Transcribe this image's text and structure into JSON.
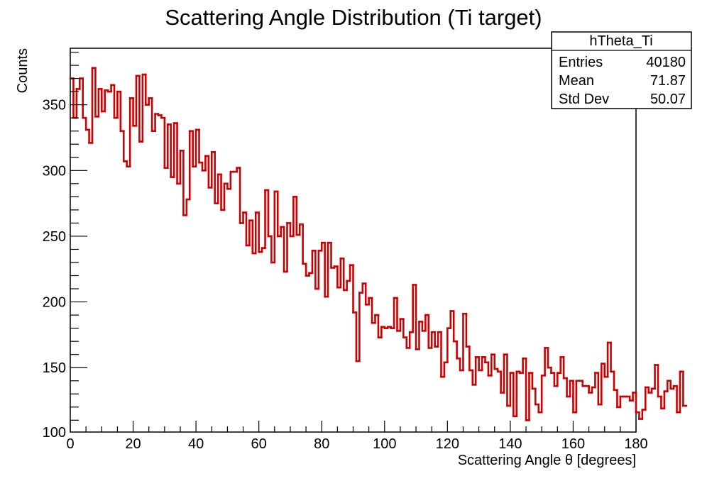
{
  "colors": {
    "histogram": "#cc0000",
    "axes": "#000000",
    "background": "#ffffff"
  },
  "stats_box": {
    "name": "hTheta_Ti",
    "rows": [
      {
        "label": "Entries",
        "value": "40180"
      },
      {
        "label": "Mean",
        "value": "71.87"
      },
      {
        "label": "Std Dev",
        "value": "50.07"
      }
    ]
  },
  "chart_data": {
    "type": "histogram",
    "title": "Scattering Angle Distribution (Ti target)",
    "xlabel": "Scattering Angle θ [degrees]",
    "ylabel": "Counts",
    "xlim": [
      0,
      180
    ],
    "ylim": [
      101,
      393
    ],
    "x_ticks": [
      0,
      20,
      40,
      60,
      80,
      100,
      120,
      140,
      160,
      180
    ],
    "y_ticks": [
      100,
      150,
      200,
      250,
      300,
      350
    ],
    "bin_width": 1,
    "values": [
      370,
      340,
      362,
      370,
      340,
      331,
      321,
      378,
      341,
      362,
      345,
      361,
      360,
      365,
      340,
      360,
      330,
      307,
      303,
      355,
      334,
      372,
      322,
      373,
      350,
      355,
      330,
      343,
      342,
      340,
      302,
      335,
      295,
      336,
      290,
      315,
      266,
      278,
      330,
      303,
      331,
      306,
      300,
      311,
      287,
      314,
      275,
      297,
      270,
      290,
      286,
      299,
      299,
      302,
      260,
      268,
      243,
      262,
      237,
      268,
      238,
      241,
      285,
      250,
      230,
      284,
      250,
      257,
      223,
      260,
      250,
      280,
      251,
      259,
      229,
      220,
      222,
      239,
      210,
      239,
      245,
      204,
      245,
      226,
      227,
      211,
      233,
      209,
      216,
      228,
      192,
      155,
      207,
      214,
      198,
      203,
      184,
      190,
      173,
      181,
      180,
      181,
      180,
      203,
      178,
      187,
      173,
      165,
      177,
      213,
      164,
      185,
      178,
      190,
      165,
      177,
      166,
      177,
      143,
      154,
      180,
      193,
      170,
      157,
      148,
      191,
      166,
      148,
      137,
      158,
      148,
      158,
      154,
      144,
      160,
      149,
      147,
      131,
      160,
      121,
      146,
      113,
      147,
      146,
      157,
      110,
      146,
      134,
      122,
      116,
      144,
      165,
      150,
      146,
      136,
      146,
      158,
      142,
      128,
      140,
      116,
      140,
      140,
      136,
      136,
      131,
      135,
      146,
      122,
      153,
      143,
      169,
      147,
      133,
      120,
      128,
      128,
      128,
      125,
      131,
      116,
      111,
      118,
      135,
      131,
      134,
      152,
      128,
      119,
      132,
      140,
      134,
      136,
      116,
      147,
      121
    ]
  }
}
